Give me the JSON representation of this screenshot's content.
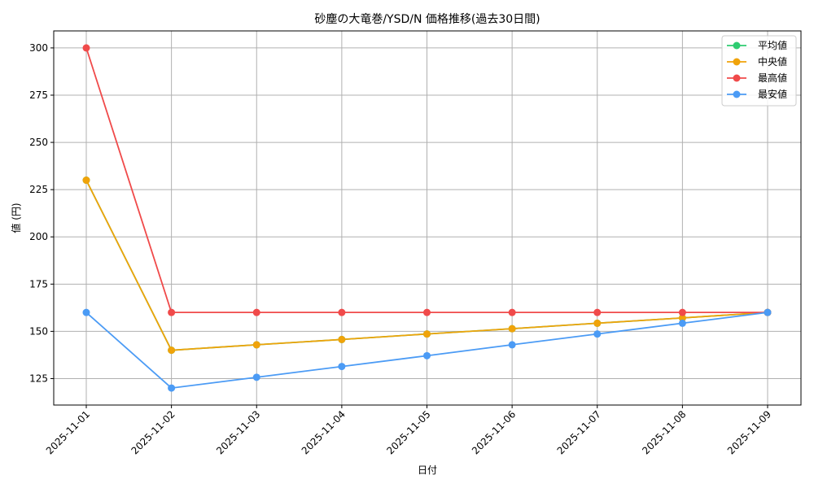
{
  "chart_data": {
    "type": "line",
    "title": "砂塵の大竜巻/YSD/N 価格推移(過去30日間)",
    "xlabel": "日付",
    "ylabel": "値 (円)",
    "categories": [
      "2025-11-01",
      "2025-11-02",
      "2025-11-03",
      "2025-11-04",
      "2025-11-05",
      "2025-11-06",
      "2025-11-07",
      "2025-11-08",
      "2025-11-09"
    ],
    "ylim": [
      111,
      309
    ],
    "yticks": [
      125,
      150,
      175,
      200,
      225,
      250,
      275,
      300
    ],
    "grid": true,
    "legend": "top-right",
    "series": [
      {
        "name": "平均値",
        "color": "#2ecc71",
        "values": [
          230,
          140,
          142.9,
          145.7,
          148.6,
          151.4,
          154.3,
          157.1,
          160
        ]
      },
      {
        "name": "中央値",
        "color": "#f0a30a",
        "values": [
          230,
          140,
          142.9,
          145.7,
          148.6,
          151.4,
          154.3,
          157.1,
          160
        ]
      },
      {
        "name": "最高値",
        "color": "#f04a4a",
        "values": [
          300,
          160,
          160,
          160,
          160,
          160,
          160,
          160,
          160
        ]
      },
      {
        "name": "最安値",
        "color": "#4b9bf5",
        "values": [
          160,
          120,
          125.7,
          131.4,
          137.1,
          142.9,
          148.6,
          154.3,
          160
        ]
      }
    ]
  }
}
